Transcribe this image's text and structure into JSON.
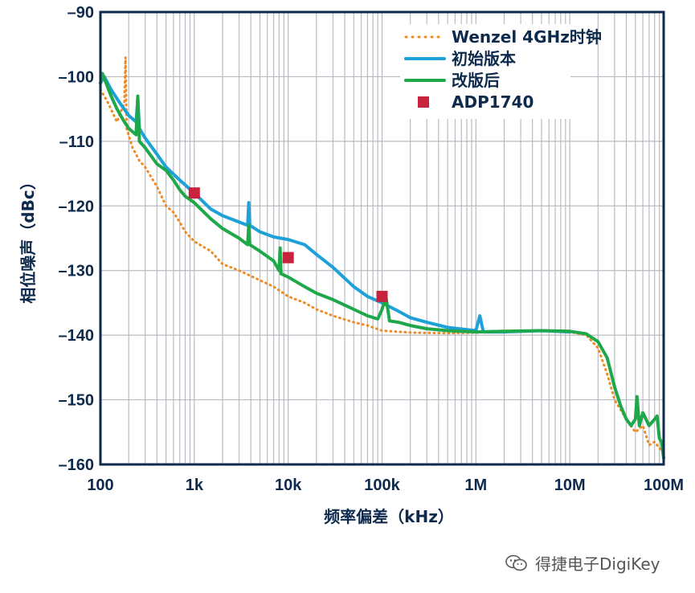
{
  "chart_data": {
    "type": "line",
    "title": "",
    "xlabel": "频率偏差（kHz）",
    "ylabel": "相位噪声（dBc）",
    "x_scale": "log",
    "x_unit": "Hz",
    "xlim": [
      100,
      100000000
    ],
    "ylim": [
      -160,
      -90
    ],
    "x_ticks": [
      {
        "value": 100,
        "label": "100"
      },
      {
        "value": 1000,
        "label": "1k"
      },
      {
        "value": 10000,
        "label": "10k"
      },
      {
        "value": 100000,
        "label": "100k"
      },
      {
        "value": 1000000,
        "label": "1M"
      },
      {
        "value": 10000000,
        "label": "10M"
      },
      {
        "value": 100000000,
        "label": "100M"
      }
    ],
    "y_ticks": [
      {
        "value": -90,
        "label": "–90"
      },
      {
        "value": -100,
        "label": "–100"
      },
      {
        "value": -110,
        "label": "–110"
      },
      {
        "value": -120,
        "label": "–120"
      },
      {
        "value": -130,
        "label": "–130"
      },
      {
        "value": -140,
        "label": "–140"
      },
      {
        "value": -150,
        "label": "–150"
      },
      {
        "value": -160,
        "label": "–160"
      }
    ],
    "grid": true,
    "legend_position": "top-right",
    "series": [
      {
        "name": "Wenzel 4GHz时钟",
        "style": "dotted",
        "color": "#f08a24",
        "points": [
          [
            100,
            -102
          ],
          [
            120,
            -104
          ],
          [
            150,
            -107
          ],
          [
            180,
            -104
          ],
          [
            185,
            -97
          ],
          [
            190,
            -108
          ],
          [
            220,
            -111
          ],
          [
            260,
            -113
          ],
          [
            300,
            -114
          ],
          [
            400,
            -117
          ],
          [
            500,
            -120
          ],
          [
            600,
            -121
          ],
          [
            700,
            -122.5
          ],
          [
            800,
            -124
          ],
          [
            1000,
            -125.5
          ],
          [
            1500,
            -127
          ],
          [
            2000,
            -129
          ],
          [
            3000,
            -130
          ],
          [
            5000,
            -131.5
          ],
          [
            7000,
            -132.5
          ],
          [
            10000,
            -134
          ],
          [
            15000,
            -135
          ],
          [
            20000,
            -136
          ],
          [
            30000,
            -137
          ],
          [
            50000,
            -138
          ],
          [
            70000,
            -138.5
          ],
          [
            100000,
            -139.3
          ],
          [
            200000,
            -139.6
          ],
          [
            500000,
            -139.7
          ],
          [
            1000000,
            -139.6
          ],
          [
            2000000,
            -139.4
          ],
          [
            5000000,
            -139.3
          ],
          [
            10000000,
            -139.5
          ],
          [
            15000000,
            -140
          ],
          [
            20000000,
            -142
          ],
          [
            25000000,
            -146
          ],
          [
            30000000,
            -150
          ],
          [
            40000000,
            -153
          ],
          [
            50000000,
            -155
          ],
          [
            60000000,
            -154
          ],
          [
            70000000,
            -157
          ],
          [
            80000000,
            -156.5
          ],
          [
            90000000,
            -157.5
          ],
          [
            100000000,
            -158
          ]
        ]
      },
      {
        "name": "初始版本",
        "style": "solid",
        "color": "#1ea1d6",
        "points": [
          [
            100,
            -101
          ],
          [
            110,
            -100
          ],
          [
            130,
            -102
          ],
          [
            160,
            -104
          ],
          [
            200,
            -106
          ],
          [
            240,
            -107
          ],
          [
            250,
            -103.5
          ],
          [
            260,
            -108
          ],
          [
            300,
            -109.5
          ],
          [
            400,
            -112
          ],
          [
            500,
            -114
          ],
          [
            700,
            -116
          ],
          [
            1000,
            -118
          ],
          [
            1500,
            -120.5
          ],
          [
            2000,
            -121.5
          ],
          [
            3000,
            -122.5
          ],
          [
            3700,
            -123
          ],
          [
            3800,
            -119.5
          ],
          [
            3900,
            -123
          ],
          [
            5000,
            -124
          ],
          [
            7000,
            -124.8
          ],
          [
            10000,
            -125.2
          ],
          [
            15000,
            -126
          ],
          [
            20000,
            -127.5
          ],
          [
            30000,
            -129.5
          ],
          [
            50000,
            -132.5
          ],
          [
            70000,
            -134
          ],
          [
            100000,
            -135
          ],
          [
            150000,
            -136.3
          ],
          [
            200000,
            -137.3
          ],
          [
            300000,
            -138
          ],
          [
            500000,
            -138.8
          ],
          [
            1000000,
            -139.3
          ],
          [
            1100000,
            -137
          ],
          [
            1200000,
            -139.5
          ],
          [
            2000000,
            -139.5
          ],
          [
            5000000,
            -139.3
          ],
          [
            10000000,
            -139.5
          ]
        ]
      },
      {
        "name": "改版后",
        "style": "solid",
        "color": "#1fa84a",
        "points": [
          [
            100,
            -101
          ],
          [
            105,
            -99.5
          ],
          [
            115,
            -101
          ],
          [
            130,
            -103
          ],
          [
            150,
            -105
          ],
          [
            180,
            -107
          ],
          [
            200,
            -108
          ],
          [
            240,
            -109
          ],
          [
            250,
            -103
          ],
          [
            260,
            -110
          ],
          [
            300,
            -111
          ],
          [
            400,
            -113.5
          ],
          [
            500,
            -114.5
          ],
          [
            600,
            -116
          ],
          [
            700,
            -117.5
          ],
          [
            800,
            -118.5
          ],
          [
            1000,
            -119.5
          ],
          [
            1500,
            -122
          ],
          [
            2000,
            -123.5
          ],
          [
            3000,
            -125
          ],
          [
            3700,
            -126
          ],
          [
            3800,
            -123
          ],
          [
            3900,
            -126
          ],
          [
            5000,
            -127
          ],
          [
            7000,
            -128.5
          ],
          [
            8000,
            -130
          ],
          [
            8200,
            -126.5
          ],
          [
            8400,
            -130.5
          ],
          [
            10000,
            -131
          ],
          [
            15000,
            -132.5
          ],
          [
            20000,
            -133.5
          ],
          [
            30000,
            -134.5
          ],
          [
            50000,
            -136
          ],
          [
            70000,
            -137
          ],
          [
            90000,
            -137.5
          ],
          [
            100000,
            -136
          ],
          [
            110000,
            -134
          ],
          [
            120000,
            -137.8
          ],
          [
            150000,
            -138
          ],
          [
            200000,
            -138.5
          ],
          [
            300000,
            -139
          ],
          [
            500000,
            -139.3
          ],
          [
            1000000,
            -139.5
          ],
          [
            2000000,
            -139.4
          ],
          [
            5000000,
            -139.3
          ],
          [
            10000000,
            -139.4
          ],
          [
            15000000,
            -139.8
          ],
          [
            20000000,
            -141
          ],
          [
            25000000,
            -143.5
          ],
          [
            30000000,
            -148
          ],
          [
            35000000,
            -151
          ],
          [
            40000000,
            -153
          ],
          [
            45000000,
            -154
          ],
          [
            50000000,
            -153
          ],
          [
            52000000,
            -149.5
          ],
          [
            55000000,
            -154
          ],
          [
            60000000,
            -152
          ],
          [
            70000000,
            -154
          ],
          [
            80000000,
            -153
          ],
          [
            85000000,
            -152.5
          ],
          [
            90000000,
            -156
          ],
          [
            95000000,
            -156.5
          ],
          [
            100000000,
            -159
          ]
        ]
      },
      {
        "name": "ADP1740",
        "style": "markers",
        "color": "#c8233e",
        "points": [
          [
            1000,
            -118
          ],
          [
            10000,
            -128
          ],
          [
            100000,
            -134
          ]
        ]
      }
    ]
  },
  "watermark": {
    "text": "得捷电子DigiKey",
    "icon": "wechat-icon"
  }
}
